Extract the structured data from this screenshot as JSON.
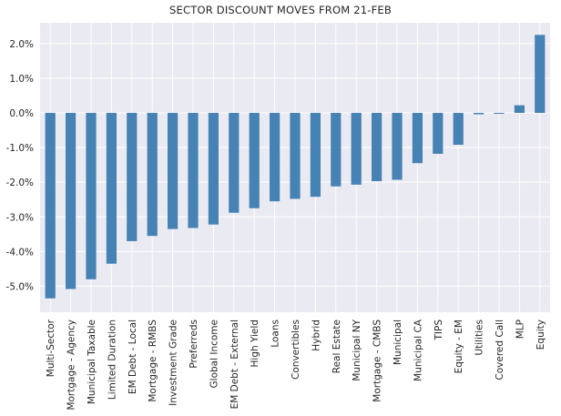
{
  "chart_data": {
    "type": "bar",
    "title": "SECTOR DISCOUNT MOVES FROM 21-FEB",
    "xlabel": "",
    "ylabel": "",
    "ylim": [
      -5.75,
      2.6
    ],
    "y_ticks": [
      "2.0%",
      "1.0%",
      "0.0%",
      "-1.0%",
      "-2.0%",
      "-3.0%",
      "-4.0%",
      "-5.0%"
    ],
    "y_tick_values": [
      2,
      1,
      0,
      -1,
      -2,
      -3,
      -4,
      -5
    ],
    "grid": true,
    "bar_color": "#4682b4",
    "background": "#eaeaf2",
    "categories": [
      "Multi-Sector",
      "Mortgage - Agency",
      "Municipal Taxable",
      "Limited Duration",
      "EM Debt - Local",
      "Mortgage - RMBS",
      "Investment Grade",
      "Preferreds",
      "Global Income",
      "EM Debt - External",
      "High Yield",
      "Loans",
      "Convertibles",
      "Hybrid",
      "Real Estate",
      "Municipal NY",
      "Mortgage - CMBS",
      "Municipal",
      "Municipal CA",
      "TIPS",
      "Equity - EM",
      "Utilities",
      "Covered Call",
      "MLP",
      "Equity"
    ],
    "values": [
      -5.35,
      -5.08,
      -4.8,
      -4.35,
      -3.7,
      -3.55,
      -3.35,
      -3.32,
      -3.22,
      -2.88,
      -2.75,
      -2.55,
      -2.48,
      -2.42,
      -2.12,
      -2.07,
      -1.97,
      -1.93,
      -1.45,
      -1.18,
      -0.92,
      -0.04,
      -0.01,
      0.22,
      2.25
    ]
  }
}
